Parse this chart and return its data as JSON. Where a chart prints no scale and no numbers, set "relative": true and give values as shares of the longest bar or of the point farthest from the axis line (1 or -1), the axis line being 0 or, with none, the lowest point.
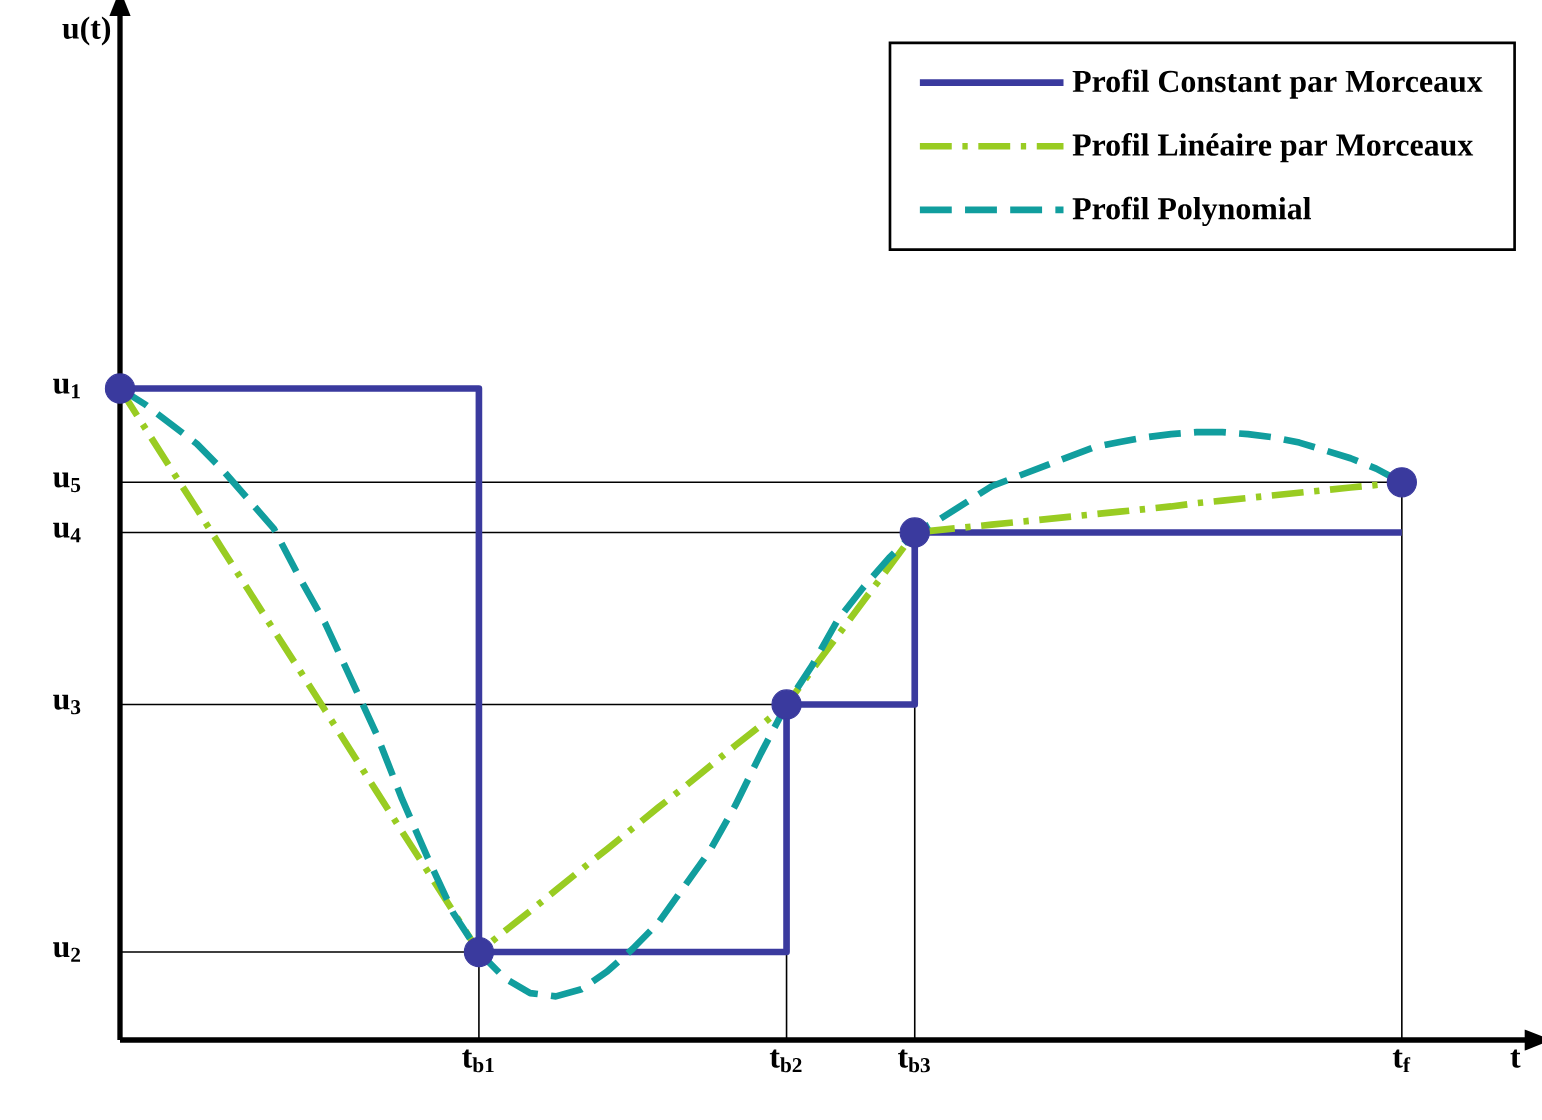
{
  "chart_data": {
    "type": "line",
    "relative": true,
    "xlabel": "t",
    "categories": [
      null,
      null,
      null,
      null,
      null,
      null,
      null,
      null,
      null,
      null,
      null,
      null,
      null,
      null,
      "t$_{b1}$",
      null,
      null,
      null,
      null,
      null,
      null,
      null,
      null,
      null,
      null,
      null,
      "t$_{b2}$",
      null,
      null,
      null,
      null,
      "t$_{b3}$",
      null,
      null,
      null,
      null,
      null,
      null,
      null,
      null,
      null,
      null,
      null,
      null,
      null,
      null,
      null,
      null,
      null,
      null,
      "t$_{f}$",
      null,
      null,
      null,
      null,
      null
    ],
    "legend": "top right",
    "series": [
      {
        "name": "Profil Constant par Morceaux",
        "type": "step",
        "color": "#3a3a9e",
        "line_style": "solid",
        "values": [
          1,
          1,
          1,
          1,
          1,
          1,
          1,
          1,
          1,
          1,
          1,
          1,
          1,
          1,
          0.135,
          0.135,
          0.135,
          0.135,
          0.135,
          0.135,
          0.135,
          0.135,
          0.135,
          0.135,
          0.135,
          0.135,
          0.515,
          0.515,
          0.515,
          0.515,
          0.515,
          0.779,
          0.779,
          0.779,
          0.779,
          0.779,
          0.779,
          0.779,
          0.779,
          0.779,
          0.779,
          0.779,
          0.779,
          0.779,
          0.779,
          0.779,
          0.779,
          0.779,
          0.779,
          0.779,
          0.779,
          null,
          null,
          null,
          null,
          null
        ]
      },
      {
        "name": "Profil Linéaire par Morceaux",
        "color": "#99cc22",
        "line_style": "dashdot",
        "values": [
          1,
          0.938,
          0.876,
          0.815,
          0.753,
          0.691,
          0.629,
          0.568,
          0.506,
          0.444,
          0.382,
          0.32,
          0.259,
          0.197,
          0.135,
          0.167,
          0.198,
          0.23,
          0.262,
          0.293,
          0.325,
          0.357,
          0.388,
          0.42,
          0.452,
          0.483,
          0.515,
          0.568,
          0.621,
          0.674,
          0.726,
          0.779,
          0.783,
          0.787,
          0.791,
          0.795,
          0.799,
          0.803,
          0.807,
          0.811,
          0.815,
          0.819,
          0.824,
          0.828,
          0.832,
          0.836,
          0.84,
          0.844,
          0.848,
          0.852,
          0.856,
          null,
          null,
          null,
          null,
          null
        ]
      },
      {
        "name": "Profil Polynomial",
        "color": "#119e9e",
        "line_style": "dashed",
        "values": [
          1,
          0.975,
          0.945,
          0.915,
          0.875,
          0.83,
          0.785,
          0.71,
          0.64,
          0.555,
          0.47,
          0.37,
          0.28,
          0.195,
          0.135,
          0.095,
          0.072,
          0.067,
          0.078,
          0.105,
          0.14,
          0.18,
          0.235,
          0.29,
          0.36,
          0.44,
          0.515,
          0.575,
          0.645,
          0.695,
          0.74,
          0.779,
          0.8,
          0.825,
          0.85,
          0.865,
          0.88,
          0.895,
          0.91,
          0.918,
          0.925,
          0.93,
          0.933,
          0.933,
          0.93,
          0.925,
          0.917,
          0.905,
          0.893,
          0.877,
          0.856,
          null,
          null,
          null,
          null,
          null
        ]
      },
      {
        "type": "scatter",
        "color": "#3a3a9e",
        "marker": "circle",
        "line_style": "none",
        "values": [
          1,
          null,
          null,
          null,
          null,
          null,
          null,
          null,
          null,
          null,
          null,
          null,
          null,
          null,
          0.135,
          null,
          null,
          null,
          null,
          null,
          null,
          null,
          null,
          null,
          null,
          null,
          0.515,
          null,
          null,
          null,
          null,
          0.779,
          null,
          null,
          null,
          null,
          null,
          null,
          null,
          null,
          null,
          null,
          null,
          null,
          null,
          null,
          null,
          null,
          null,
          null,
          0.856,
          null,
          null,
          null,
          null,
          null
        ]
      }
    ],
    "annotations": [
      "u$_{1}$",
      "u$_{2}$",
      "u$_{3}$",
      "u$_{4}$",
      "u$_{5}$",
      "u(t)"
    ]
  }
}
